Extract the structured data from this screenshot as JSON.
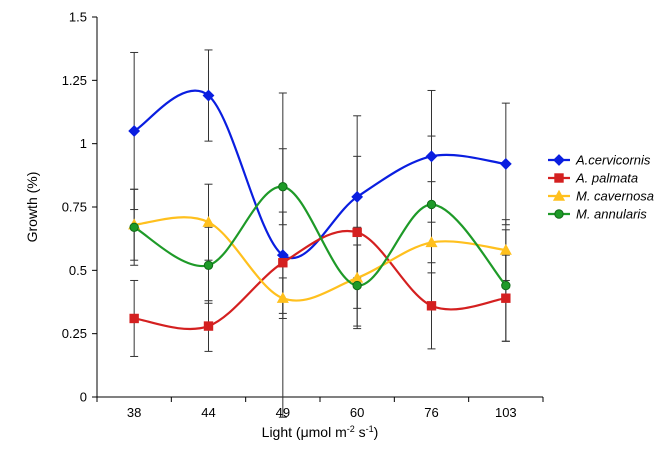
{
  "chart_data": {
    "type": "line",
    "title": "",
    "xlabel": "Light (μmol m-2 s-1)",
    "ylabel": "Growth (%)",
    "categories": [
      "38",
      "44",
      "49",
      "60",
      "76",
      "103"
    ],
    "ylim": [
      0,
      1.5
    ],
    "yticks": [
      0,
      0.25,
      0.5,
      0.75,
      1,
      1.25,
      1.5
    ],
    "ytick_labels": [
      "0",
      "0.25",
      "0.5",
      "0.75",
      "1",
      "1.25",
      "1.5"
    ],
    "legend_position": "right",
    "grid": false,
    "series": [
      {
        "name": "A.cervicornis",
        "color": "#0a1ee0",
        "marker": "diamond",
        "values": [
          1.05,
          1.19,
          0.56,
          0.79,
          0.95,
          0.92
        ],
        "error": [
          0.31,
          0.18,
          0.64,
          0.32,
          0.26,
          0.24
        ]
      },
      {
        "name": "A. palmata",
        "color": "#d42020",
        "marker": "square",
        "values": [
          0.31,
          0.28,
          0.53,
          0.65,
          0.36,
          0.39
        ],
        "error": [
          0.15,
          0.1,
          0.2,
          0.3,
          0.17,
          0.17
        ]
      },
      {
        "name": "M. cavernosa",
        "color": "#ffc01e",
        "marker": "triangle",
        "values": [
          0.68,
          0.69,
          0.39,
          0.47,
          0.61,
          0.58
        ],
        "error": [
          0.14,
          0.15,
          0.08,
          0.2,
          0.24,
          0.12
        ]
      },
      {
        "name": "M. annularis",
        "color": "#1e9a28",
        "marker": "circle",
        "values": [
          0.67,
          0.52,
          0.83,
          0.44,
          0.76,
          0.44
        ],
        "error": [
          0.15,
          0.15,
          0.15,
          0.16,
          0.27,
          0.22
        ]
      }
    ]
  }
}
